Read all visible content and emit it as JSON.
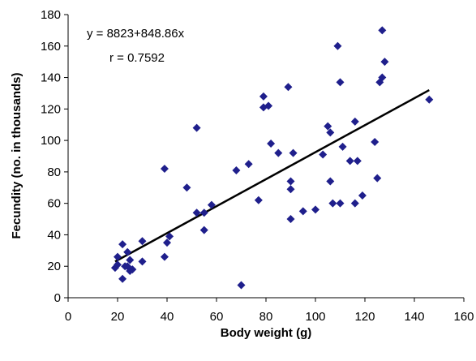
{
  "chart_data": {
    "type": "scatter",
    "title": "",
    "xlabel": "Body weight (g)",
    "ylabel": "Fecundity (no. in thousands)",
    "xlim": [
      0,
      160
    ],
    "ylim": [
      0,
      180
    ],
    "xticks": [
      0,
      20,
      40,
      60,
      80,
      100,
      120,
      140,
      160
    ],
    "yticks": [
      0,
      20,
      40,
      60,
      80,
      100,
      120,
      140,
      160,
      180
    ],
    "grid": false,
    "legend": "none",
    "marker": "diamond",
    "marker_color": "#1F1F8C",
    "line_color": "#000000",
    "annotations": [
      "y = 8823+848.86x",
      "r = 0.7592"
    ],
    "trendline": {
      "x": [
        19,
        146
      ],
      "y": [
        23,
        132
      ]
    },
    "points": [
      {
        "x": 19,
        "y": 19
      },
      {
        "x": 20,
        "y": 21
      },
      {
        "x": 20,
        "y": 26
      },
      {
        "x": 22,
        "y": 34
      },
      {
        "x": 22,
        "y": 12
      },
      {
        "x": 23,
        "y": 20
      },
      {
        "x": 24,
        "y": 20
      },
      {
        "x": 24,
        "y": 29
      },
      {
        "x": 25,
        "y": 24
      },
      {
        "x": 25,
        "y": 17
      },
      {
        "x": 26,
        "y": 18
      },
      {
        "x": 30,
        "y": 36
      },
      {
        "x": 30,
        "y": 23
      },
      {
        "x": 39,
        "y": 82
      },
      {
        "x": 39,
        "y": 26
      },
      {
        "x": 40,
        "y": 35
      },
      {
        "x": 41,
        "y": 39
      },
      {
        "x": 48,
        "y": 70
      },
      {
        "x": 52,
        "y": 108
      },
      {
        "x": 52,
        "y": 54
      },
      {
        "x": 55,
        "y": 43
      },
      {
        "x": 55,
        "y": 54
      },
      {
        "x": 58,
        "y": 59
      },
      {
        "x": 68,
        "y": 81
      },
      {
        "x": 70,
        "y": 8
      },
      {
        "x": 73,
        "y": 85
      },
      {
        "x": 77,
        "y": 62
      },
      {
        "x": 79,
        "y": 128
      },
      {
        "x": 79,
        "y": 121
      },
      {
        "x": 81,
        "y": 122
      },
      {
        "x": 82,
        "y": 98
      },
      {
        "x": 85,
        "y": 92
      },
      {
        "x": 89,
        "y": 134
      },
      {
        "x": 90,
        "y": 74
      },
      {
        "x": 90,
        "y": 69
      },
      {
        "x": 90,
        "y": 50
      },
      {
        "x": 91,
        "y": 92
      },
      {
        "x": 95,
        "y": 55
      },
      {
        "x": 100,
        "y": 56
      },
      {
        "x": 103,
        "y": 91
      },
      {
        "x": 105,
        "y": 109
      },
      {
        "x": 106,
        "y": 105
      },
      {
        "x": 106,
        "y": 74
      },
      {
        "x": 107,
        "y": 60
      },
      {
        "x": 109,
        "y": 160
      },
      {
        "x": 110,
        "y": 137
      },
      {
        "x": 110,
        "y": 60
      },
      {
        "x": 111,
        "y": 96
      },
      {
        "x": 114,
        "y": 87
      },
      {
        "x": 116,
        "y": 112
      },
      {
        "x": 116,
        "y": 60
      },
      {
        "x": 117,
        "y": 87
      },
      {
        "x": 119,
        "y": 65
      },
      {
        "x": 124,
        "y": 99
      },
      {
        "x": 125,
        "y": 76
      },
      {
        "x": 126,
        "y": 137
      },
      {
        "x": 127,
        "y": 170
      },
      {
        "x": 127,
        "y": 140
      },
      {
        "x": 128,
        "y": 150
      },
      {
        "x": 146,
        "y": 126
      }
    ]
  }
}
